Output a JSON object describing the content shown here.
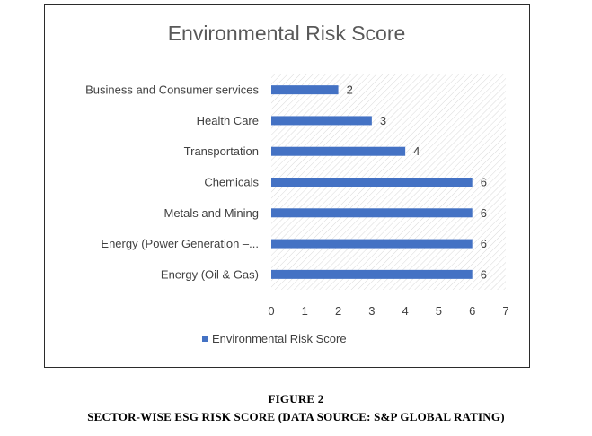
{
  "chart_data": {
    "type": "bar",
    "orientation": "horizontal",
    "title": "Environmental Risk Score",
    "categories": [
      "Business and Consumer services",
      "Health Care",
      "Transportation",
      "Chemicals",
      "Metals and Mining",
      "Energy (Power Generation –...",
      "Energy (Oil & Gas)"
    ],
    "series": [
      {
        "name": "Environmental Risk Score",
        "values": [
          2,
          3,
          4,
          6,
          6,
          6,
          6
        ],
        "color": "#4472c4"
      }
    ],
    "xlim": [
      0,
      7
    ],
    "x_ticks": [
      0,
      1,
      2,
      3,
      4,
      5,
      6,
      7
    ],
    "data_labels": true,
    "grid": false,
    "plot_background": "hatched",
    "legend": "bottom"
  },
  "caption": {
    "figure_label": "FIGURE 2",
    "subtitle": "SECTOR-WISE ESG RISK SCORE (DATA SOURCE: S&P GLOBAL RATING)"
  }
}
